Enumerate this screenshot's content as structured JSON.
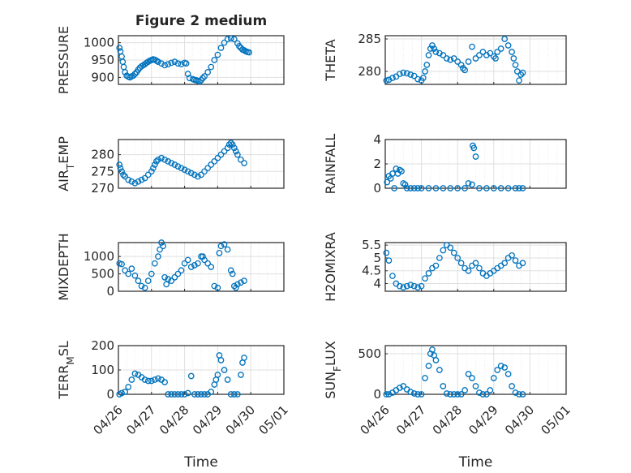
{
  "figure": {
    "title": "Figure 2 medium"
  },
  "chart_data": [
    {
      "type": "scatter",
      "ylabel": "PRESSURE",
      "ylim": [
        880,
        1020
      ],
      "yticks": [
        "900",
        "950",
        "1000"
      ],
      "title": "Figure 2 medium",
      "x_start": "04/26",
      "xlim_days": [
        0,
        5
      ],
      "show_xticks": false,
      "x": [
        0.03,
        0.06,
        0.1,
        0.13,
        0.16,
        0.2,
        0.25,
        0.3,
        0.35,
        0.4,
        0.45,
        0.5,
        0.55,
        0.6,
        0.65,
        0.7,
        0.75,
        0.8,
        0.85,
        0.9,
        0.95,
        1.0,
        1.05,
        1.1,
        1.15,
        1.2,
        1.3,
        1.4,
        1.5,
        1.6,
        1.7,
        1.8,
        1.9,
        2.0,
        2.05,
        2.1,
        2.15,
        2.25,
        2.3,
        2.35,
        2.4,
        2.45,
        2.5,
        2.55,
        2.6,
        2.7,
        2.8,
        2.9,
        3.0,
        3.1,
        3.2,
        3.3,
        3.4,
        3.5,
        3.6,
        3.65,
        3.7,
        3.75,
        3.8,
        3.85,
        3.9,
        3.95
      ],
      "y": [
        985,
        975,
        960,
        945,
        930,
        915,
        905,
        902,
        900,
        903,
        905,
        910,
        915,
        922,
        928,
        932,
        935,
        938,
        942,
        945,
        948,
        950,
        952,
        951,
        948,
        945,
        940,
        935,
        938,
        942,
        945,
        940,
        938,
        942,
        940,
        910,
        898,
        895,
        893,
        892,
        890,
        888,
        892,
        898,
        903,
        915,
        930,
        950,
        965,
        985,
        1000,
        1010,
        1012,
        1010,
        998,
        990,
        985,
        980,
        978,
        975,
        973,
        972
      ]
    },
    {
      "type": "scatter",
      "ylabel": "THETA",
      "ylim": [
        278,
        285.5
      ],
      "yticks": [
        "280",
        "285"
      ],
      "x_start": "04/26",
      "xlim_days": [
        0,
        5
      ],
      "show_xticks": false,
      "x": [
        0.03,
        0.1,
        0.2,
        0.3,
        0.4,
        0.5,
        0.6,
        0.7,
        0.8,
        0.9,
        1.0,
        1.05,
        1.1,
        1.15,
        1.2,
        1.25,
        1.3,
        1.35,
        1.4,
        1.5,
        1.6,
        1.7,
        1.8,
        1.9,
        2.0,
        2.1,
        2.15,
        2.2,
        2.3,
        2.4,
        2.5,
        2.6,
        2.7,
        2.8,
        2.9,
        3.0,
        3.05,
        3.1,
        3.2,
        3.3,
        3.4,
        3.5,
        3.55,
        3.6,
        3.65,
        3.7,
        3.75,
        3.8
      ],
      "y": [
        278.6,
        278.7,
        279,
        279.2,
        279.6,
        279.8,
        279.7,
        279.5,
        279.3,
        278.8,
        278.6,
        279,
        280,
        281,
        282.5,
        283.5,
        284,
        283.5,
        283,
        282.8,
        282.5,
        282,
        281.8,
        282,
        281.5,
        281,
        280.5,
        280.2,
        281.5,
        283.8,
        282,
        282.5,
        283,
        282.5,
        282.8,
        282.3,
        282,
        283,
        283.5,
        285,
        284,
        283,
        282,
        281,
        280,
        278.6,
        279.5,
        279.8
      ]
    },
    {
      "type": "scatter",
      "ylabel": "AIR_TEMP",
      "ylim": [
        270,
        284.5
      ],
      "yticks": [
        "270",
        "275",
        "280"
      ],
      "x_start": "04/26",
      "xlim_days": [
        0,
        5
      ],
      "show_xticks": false,
      "x": [
        0.03,
        0.06,
        0.1,
        0.15,
        0.2,
        0.3,
        0.4,
        0.5,
        0.6,
        0.7,
        0.8,
        0.9,
        1.0,
        1.05,
        1.1,
        1.15,
        1.2,
        1.3,
        1.4,
        1.5,
        1.6,
        1.7,
        1.8,
        1.9,
        2.0,
        2.1,
        2.2,
        2.3,
        2.4,
        2.5,
        2.6,
        2.7,
        2.8,
        2.9,
        3.0,
        3.1,
        3.2,
        3.3,
        3.35,
        3.4,
        3.45,
        3.5,
        3.55,
        3.6,
        3.7,
        3.8
      ],
      "y": [
        277,
        276,
        275,
        274,
        273.5,
        272.5,
        272,
        271.5,
        272,
        272.5,
        273,
        274,
        275,
        276,
        277,
        278,
        278.5,
        279,
        278.5,
        278,
        277.5,
        277,
        276.5,
        276,
        275.5,
        275,
        274.5,
        274,
        273.5,
        274,
        275,
        276,
        277,
        278,
        279,
        280,
        281,
        282,
        283,
        283.5,
        283,
        282,
        281,
        280,
        278.5,
        277.5
      ]
    },
    {
      "type": "scatter",
      "ylabel": "RAINFALL",
      "ylim": [
        0,
        4
      ],
      "yticks": [
        "0",
        "2",
        "4"
      ],
      "x_start": "04/26",
      "xlim_days": [
        0,
        5
      ],
      "show_xticks": false,
      "x": [
        0.05,
        0.1,
        0.15,
        0.2,
        0.25,
        0.3,
        0.35,
        0.4,
        0.45,
        0.5,
        0.55,
        0.6,
        0.7,
        0.8,
        0.9,
        1.0,
        1.2,
        1.4,
        1.6,
        1.8,
        2.0,
        2.2,
        2.3,
        2.4,
        2.42,
        2.45,
        2.5,
        2.6,
        2.8,
        3.0,
        3.2,
        3.4,
        3.6,
        3.7,
        3.8
      ],
      "y": [
        0.5,
        1.0,
        0.8,
        1.2,
        0,
        1.6,
        1.2,
        1.5,
        1.4,
        0.4,
        0.3,
        0,
        0,
        0,
        0,
        0,
        0,
        0,
        0,
        0,
        0,
        0,
        0.4,
        0.3,
        3.5,
        3.3,
        2.6,
        0,
        0,
        0,
        0,
        0,
        0,
        0,
        0
      ]
    },
    {
      "type": "scatter",
      "ylabel": "MIXDEPTH",
      "ylim": [
        0,
        1400
      ],
      "yticks": [
        "0",
        "500",
        "1000"
      ],
      "x_start": "04/26",
      "xlim_days": [
        0,
        5
      ],
      "show_xticks": false,
      "x": [
        0.03,
        0.1,
        0.2,
        0.3,
        0.4,
        0.5,
        0.6,
        0.7,
        0.8,
        0.9,
        1.0,
        1.1,
        1.2,
        1.25,
        1.3,
        1.35,
        1.4,
        1.45,
        1.5,
        1.6,
        1.7,
        1.8,
        1.9,
        2.0,
        2.1,
        2.2,
        2.3,
        2.4,
        2.5,
        2.55,
        2.6,
        2.7,
        2.8,
        2.9,
        3.0,
        3.05,
        3.1,
        3.2,
        3.3,
        3.4,
        3.45,
        3.5,
        3.55,
        3.6,
        3.7,
        3.8
      ],
      "y": [
        800,
        780,
        600,
        500,
        650,
        450,
        300,
        150,
        100,
        300,
        500,
        800,
        1000,
        1200,
        1400,
        1300,
        400,
        200,
        350,
        300,
        400,
        500,
        600,
        800,
        900,
        700,
        750,
        800,
        1000,
        1000,
        900,
        800,
        700,
        150,
        100,
        1100,
        1300,
        1350,
        1200,
        600,
        500,
        150,
        100,
        200,
        250,
        300
      ]
    },
    {
      "type": "scatter",
      "ylabel": "H2OMIXRA",
      "ylim": [
        3.7,
        5.6
      ],
      "yticks": [
        "4",
        "4.5",
        "5",
        "5.5"
      ],
      "x_start": "04/26",
      "xlim_days": [
        0,
        5
      ],
      "show_xticks": false,
      "x": [
        0.03,
        0.1,
        0.2,
        0.3,
        0.4,
        0.5,
        0.6,
        0.7,
        0.8,
        0.9,
        1.0,
        1.1,
        1.2,
        1.3,
        1.4,
        1.5,
        1.6,
        1.7,
        1.8,
        1.9,
        2.0,
        2.1,
        2.2,
        2.3,
        2.4,
        2.5,
        2.6,
        2.7,
        2.8,
        2.9,
        3.0,
        3.1,
        3.2,
        3.3,
        3.4,
        3.5,
        3.6,
        3.7,
        3.8
      ],
      "y": [
        5.2,
        4.9,
        4.3,
        4.0,
        3.9,
        3.85,
        3.9,
        3.95,
        3.9,
        3.85,
        3.9,
        4.2,
        4.4,
        4.6,
        4.7,
        5.0,
        5.3,
        5.5,
        5.4,
        5.2,
        5.0,
        4.8,
        4.6,
        4.5,
        4.7,
        4.8,
        4.6,
        4.4,
        4.3,
        4.4,
        4.5,
        4.6,
        4.7,
        4.8,
        5.0,
        5.1,
        4.9,
        4.7,
        4.8
      ]
    },
    {
      "type": "scatter",
      "ylabel": "TERR_MSL",
      "ylim": [
        0,
        200
      ],
      "yticks": [
        "0",
        "100",
        "200"
      ],
      "x_start": "04/26",
      "xlim_days": [
        0,
        5
      ],
      "show_xticks": true,
      "xticks": [
        "04/26",
        "04/27",
        "04/28",
        "04/29",
        "04/30",
        "05/01"
      ],
      "xlabel": "Time",
      "x": [
        0.03,
        0.1,
        0.2,
        0.3,
        0.4,
        0.5,
        0.6,
        0.7,
        0.8,
        0.9,
        1.0,
        1.1,
        1.2,
        1.3,
        1.4,
        1.5,
        1.6,
        1.7,
        1.8,
        1.9,
        2.0,
        2.1,
        2.2,
        2.3,
        2.4,
        2.5,
        2.6,
        2.7,
        2.8,
        2.9,
        2.95,
        3.0,
        3.05,
        3.1,
        3.2,
        3.3,
        3.4,
        3.5,
        3.6,
        3.7,
        3.75,
        3.8
      ],
      "y": [
        0,
        5,
        10,
        30,
        60,
        85,
        80,
        70,
        60,
        55,
        55,
        60,
        65,
        60,
        50,
        0,
        0,
        0,
        0,
        0,
        0,
        5,
        75,
        0,
        0,
        0,
        0,
        0,
        10,
        40,
        60,
        80,
        160,
        140,
        100,
        60,
        0,
        0,
        0,
        80,
        130,
        150
      ]
    },
    {
      "type": "scatter",
      "ylabel": "SUN_FLUX",
      "ylim": [
        0,
        600
      ],
      "yticks": [
        "0",
        "500"
      ],
      "x_start": "04/26",
      "xlim_days": [
        0,
        5
      ],
      "show_xticks": true,
      "xticks": [
        "04/26",
        "04/27",
        "04/28",
        "04/29",
        "04/30",
        "05/01"
      ],
      "xlabel": "Time",
      "x": [
        0.03,
        0.1,
        0.2,
        0.3,
        0.4,
        0.5,
        0.6,
        0.7,
        0.8,
        0.9,
        1.0,
        1.1,
        1.2,
        1.25,
        1.3,
        1.35,
        1.4,
        1.5,
        1.6,
        1.7,
        1.8,
        1.9,
        2.0,
        2.1,
        2.2,
        2.3,
        2.4,
        2.5,
        2.6,
        2.7,
        2.8,
        2.9,
        3.0,
        3.1,
        3.2,
        3.3,
        3.4,
        3.5,
        3.6,
        3.7,
        3.8
      ],
      "y": [
        0,
        0,
        20,
        50,
        80,
        100,
        60,
        30,
        10,
        0,
        0,
        200,
        350,
        500,
        550,
        480,
        420,
        300,
        100,
        10,
        0,
        0,
        0,
        0,
        50,
        250,
        200,
        100,
        20,
        0,
        0,
        50,
        200,
        300,
        350,
        330,
        250,
        100,
        20,
        0,
        0
      ]
    }
  ]
}
